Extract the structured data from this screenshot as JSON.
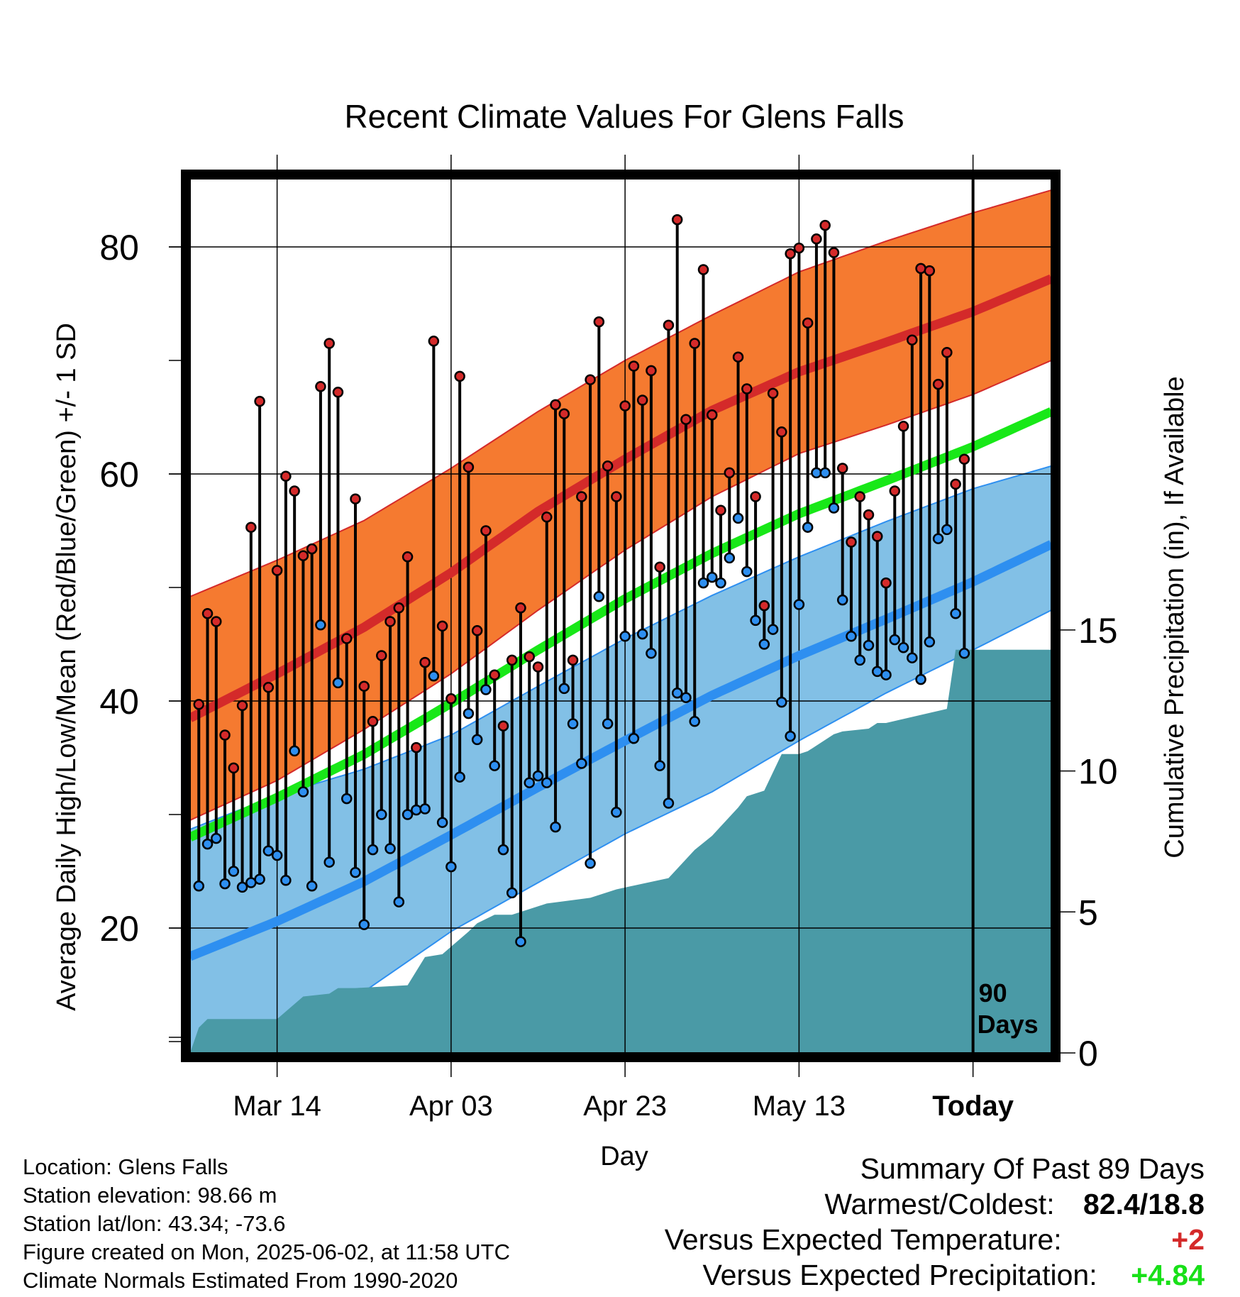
{
  "title": "Recent Climate Values For Glens Falls",
  "chart_data": {
    "type": "line",
    "title": "Recent Climate Values For Glens Falls",
    "xlabel": "Day",
    "ylabel": "Average Daily High/Low/Mean (Red/Blue/Green) +/- 1 SD",
    "y2label": "Cumulative Precipitation (in), If Available",
    "ylim": [
      9,
      86
    ],
    "y2lim": [
      0,
      31
    ],
    "xlim": [
      -90,
      9
    ],
    "x_tick_labels": [
      "Mar 14",
      "Apr 03",
      "Apr 23",
      "May 13",
      "Today"
    ],
    "x_tick_days": [
      -80,
      -60,
      -40,
      -20,
      0
    ],
    "y_ticks": [
      20,
      40,
      60,
      80
    ],
    "y2_ticks": [
      0,
      5,
      10,
      15
    ],
    "grid": true,
    "today_marker_label": [
      "90",
      "Days"
    ],
    "normals": {
      "days": [
        -90,
        -80,
        -70,
        -60,
        -50,
        -40,
        -30,
        -20,
        -10,
        0,
        9
      ],
      "high_mean": [
        38.5,
        42.4,
        46.5,
        51.3,
        56.7,
        61.3,
        65.6,
        69.0,
        71.6,
        74.3,
        77.2
      ],
      "high_plus_sd": [
        49.2,
        52.4,
        55.9,
        60.5,
        65.5,
        70.0,
        74.0,
        77.8,
        80.5,
        83.0,
        85.0
      ],
      "high_minus_sd": [
        29.5,
        33.0,
        37.5,
        42.4,
        48.0,
        53.3,
        58.0,
        61.8,
        64.3,
        67.0,
        70.0
      ],
      "low_mean": [
        17.5,
        20.6,
        24.1,
        28.2,
        32.4,
        36.5,
        40.5,
        44.0,
        47.2,
        50.5,
        53.8
      ],
      "low_plus_sd": [
        28.7,
        31.7,
        34.0,
        37.0,
        41.3,
        45.5,
        49.3,
        52.7,
        55.8,
        58.7,
        60.7
      ],
      "low_minus_sd": [
        6.5,
        9.5,
        14.4,
        19.7,
        24.0,
        28.3,
        32.0,
        36.5,
        40.7,
        44.5,
        48.0
      ],
      "mean": [
        28.0,
        31.5,
        35.3,
        39.8,
        44.5,
        49.0,
        53.0,
        56.5,
        59.4,
        62.4,
        65.5
      ]
    },
    "series": [
      {
        "name": "High",
        "values": [
          39.7,
          47.7,
          47.0,
          37.0,
          34.1,
          39.6,
          55.3,
          66.4,
          41.2,
          51.5,
          59.8,
          58.5,
          52.8,
          53.4,
          67.7,
          71.5,
          67.2,
          45.5,
          57.8,
          41.3,
          38.2,
          44.0,
          47.0,
          48.2,
          52.7,
          35.9,
          43.4,
          71.7,
          46.6,
          40.2,
          68.6,
          60.6,
          46.2,
          55.0,
          42.3,
          37.8,
          43.6,
          48.2,
          43.9,
          43.0,
          56.2,
          66.1,
          65.3,
          43.6,
          58.0,
          68.3,
          73.4,
          60.7,
          58.0,
          66.0,
          69.5,
          66.5,
          69.1,
          51.8,
          73.1,
          82.4,
          64.8,
          71.5,
          78.0,
          65.2,
          56.8,
          60.1,
          70.3,
          67.5,
          58.0,
          48.4,
          67.1,
          63.7,
          79.4,
          79.9,
          73.3,
          80.7,
          81.9,
          79.5,
          60.5,
          54.0,
          58.0,
          56.4,
          54.5,
          50.4,
          58.5,
          64.2,
          71.8,
          78.1,
          77.9,
          67.9,
          70.7,
          59.1,
          61.3
        ]
      },
      {
        "name": "Low",
        "values": [
          23.7,
          27.4,
          27.9,
          23.9,
          25.0,
          23.6,
          24.0,
          24.3,
          26.8,
          26.4,
          24.2,
          35.6,
          32.0,
          23.7,
          46.7,
          25.8,
          41.6,
          31.4,
          24.9,
          20.3,
          26.9,
          30.0,
          27.0,
          22.3,
          30.0,
          30.4,
          30.5,
          42.2,
          29.3,
          25.4,
          33.3,
          38.9,
          36.6,
          41.0,
          34.3,
          26.9,
          23.1,
          18.8,
          32.8,
          33.4,
          32.8,
          28.9,
          41.1,
          38.0,
          34.5,
          25.7,
          49.2,
          38.0,
          30.2,
          45.7,
          36.7,
          45.9,
          44.2,
          34.3,
          31.0,
          40.7,
          40.3,
          38.2,
          50.4,
          50.9,
          50.4,
          52.6,
          56.1,
          51.4,
          47.1,
          45.0,
          46.3,
          39.9,
          36.9,
          48.5,
          55.3,
          60.1,
          60.1,
          57.0,
          48.9,
          45.7,
          43.6,
          44.9,
          42.6,
          42.3,
          45.4,
          44.7,
          43.8,
          41.9,
          45.2,
          54.3,
          55.1,
          47.7,
          44.2
        ]
      }
    ],
    "precipitation": {
      "name": "Cumulative Precipitation",
      "days": [
        -90,
        -89,
        -88,
        -87,
        -80,
        -77,
        -74,
        -73,
        -71,
        -65,
        -63,
        -61,
        -58,
        -57,
        -55,
        -53,
        -49,
        -44,
        -41,
        -35,
        -32,
        -30,
        -27,
        -26,
        -24,
        -22,
        -20,
        -19,
        -16,
        -15,
        -12,
        -11,
        -10,
        -3,
        -2,
        9
      ],
      "values": [
        0.0,
        0.9,
        1.2,
        1.2,
        1.2,
        2.0,
        2.1,
        2.3,
        2.3,
        2.4,
        3.4,
        3.5,
        4.3,
        4.6,
        4.9,
        4.9,
        5.3,
        5.5,
        5.8,
        6.2,
        7.2,
        7.7,
        8.7,
        9.1,
        9.3,
        10.6,
        10.6,
        10.7,
        11.3,
        11.4,
        11.5,
        11.7,
        11.7,
        12.2,
        14.3,
        14.3
      ]
    }
  },
  "info": {
    "location": "Location: Glens Falls",
    "elevation": "Station elevation: 98.66 m",
    "latlon": "Station lat/lon: 43.34; -73.6",
    "created": "Figure created on Mon, 2025-06-02, at 11:58 UTC",
    "normals": "Climate Normals Estimated From 1990-2020"
  },
  "summary": {
    "title": "Summary Of Past 89 Days",
    "warmest_label": "Warmest/Coldest:",
    "warmest_value": "82.4/18.8",
    "temp_label": "Versus Expected Temperature:",
    "temp_value": "+2",
    "precip_label": "Versus Expected Precipitation:",
    "precip_value": "+4.84"
  },
  "colors": {
    "high_band": "#f57a30",
    "high_line": "#d42a2a",
    "low_band": "#82c0e6",
    "low_line": "#2e8ff0",
    "mean_line": "#18e818",
    "precip_fill": "#4a9aa6",
    "high_dot": "#d42a2a",
    "low_dot": "#2e8ff0",
    "temp_value": "#d42a2a",
    "precip_value": "#18e018"
  }
}
